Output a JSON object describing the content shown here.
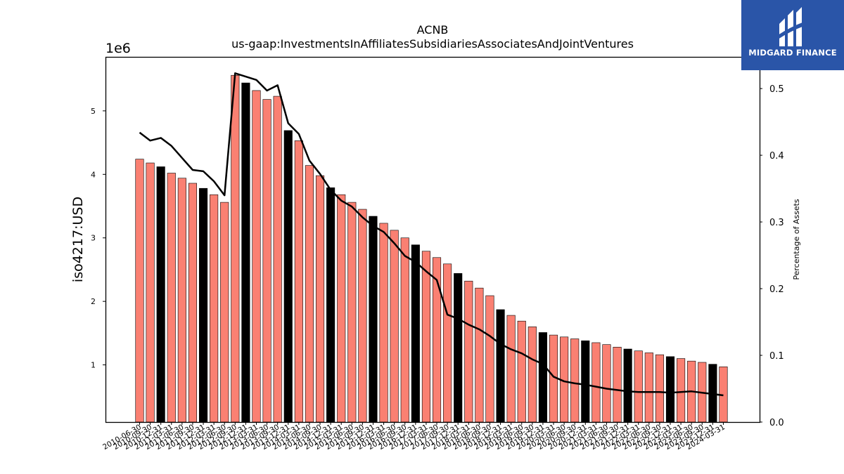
{
  "brand": {
    "name": "MIDGARD FINANCE",
    "bg": "#2a55a8"
  },
  "chart_data": {
    "type": "bar",
    "title": "ACNB",
    "subtitle": "us-gaap:InvestmentsInAffiliatesSubsidiariesAssociatesAndJointVentures",
    "ylabel": "iso4217:USD",
    "y_multiplier_label": "1e6",
    "y2label": "Percentage of Assets",
    "ylim": [
      100000,
      5850000
    ],
    "y2lim": [
      0.0,
      0.5475
    ],
    "yticks": [
      1,
      2,
      3,
      4,
      5
    ],
    "y2ticks": [
      "0.0",
      "0.1",
      "0.2",
      "0.3",
      "0.4",
      "0.5"
    ],
    "colors": {
      "bar": "#fa8072",
      "bar_q4": "#000000",
      "line": "#000000"
    },
    "grid": false,
    "categories": [
      "2010-06-30",
      "2010-09-30",
      "2010-12-31",
      "2011-03-31",
      "2011-06-30",
      "2011-09-30",
      "2011-12-31",
      "2012-03-31",
      "2012-06-30",
      "2012-09-30",
      "2012-12-31",
      "2013-03-31",
      "2013-06-30",
      "2013-09-30",
      "2013-12-31",
      "2014-03-31",
      "2014-06-30",
      "2014-09-30",
      "2014-12-31",
      "2015-03-31",
      "2015-06-30",
      "2015-09-30",
      "2015-12-31",
      "2016-03-31",
      "2016-06-30",
      "2016-09-30",
      "2016-12-31",
      "2017-03-31",
      "2017-06-30",
      "2017-09-30",
      "2017-12-31",
      "2018-03-31",
      "2018-06-30",
      "2018-09-30",
      "2018-12-31",
      "2019-03-31",
      "2019-06-30",
      "2019-09-30",
      "2019-12-31",
      "2020-03-31",
      "2020-06-30",
      "2020-09-30",
      "2020-12-31",
      "2021-03-31",
      "2021-06-30",
      "2021-09-30",
      "2021-12-31",
      "2022-03-31",
      "2022-06-30",
      "2022-09-30",
      "2022-12-31",
      "2023-03-31",
      "2023-06-30",
      "2023-09-30",
      "2023-12-31",
      "2024-03-31"
    ],
    "series": [
      {
        "kind": "bar",
        "values": [
          4240000,
          4180000,
          4120000,
          4020000,
          3940000,
          3860000,
          3780000,
          3680000,
          3560000,
          5560000,
          5440000,
          5320000,
          5180000,
          5230000,
          4690000,
          4530000,
          4140000,
          3980000,
          3790000,
          3680000,
          3560000,
          3450000,
          3340000,
          3230000,
          3120000,
          3000000,
          2890000,
          2790000,
          2690000,
          2590000,
          2440000,
          2320000,
          2210000,
          2090000,
          1870000,
          1780000,
          1690000,
          1600000,
          1510000,
          1470000,
          1440000,
          1410000,
          1380000,
          1350000,
          1320000,
          1280000,
          1250000,
          1220000,
          1190000,
          1160000,
          1130000,
          1100000,
          1060000,
          1040000,
          1010000,
          970000
        ]
      },
      {
        "kind": "line",
        "axis": "right",
        "values": [
          0.434,
          0.422,
          0.426,
          0.414,
          0.396,
          0.378,
          0.376,
          0.361,
          0.34,
          0.523,
          0.518,
          0.513,
          0.497,
          0.505,
          0.448,
          0.432,
          0.392,
          0.372,
          0.348,
          0.332,
          0.323,
          0.307,
          0.294,
          0.285,
          0.268,
          0.249,
          0.24,
          0.226,
          0.213,
          0.161,
          0.155,
          0.146,
          0.139,
          0.129,
          0.117,
          0.109,
          0.103,
          0.094,
          0.087,
          0.068,
          0.061,
          0.058,
          0.056,
          0.053,
          0.05,
          0.048,
          0.046,
          0.045,
          0.045,
          0.045,
          0.044,
          0.045,
          0.046,
          0.044,
          0.042,
          0.04
        ]
      }
    ]
  }
}
